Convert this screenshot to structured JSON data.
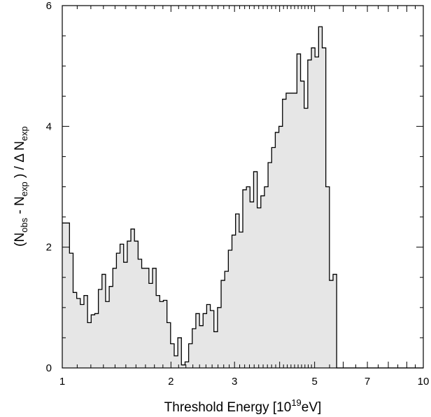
{
  "chart_data": {
    "type": "area",
    "subtype": "step histogram",
    "xscale": "log",
    "xlim": [
      1,
      10
    ],
    "ylim": [
      0,
      6
    ],
    "grid": false,
    "legend": "none",
    "fill_color": "#e6e6e6",
    "line_color": "#000000",
    "xlabel": {
      "main": "Threshold Energy [10",
      "sup": "19",
      "tail": "eV]"
    },
    "ylabel": {
      "p1": "(N",
      "s1": "obs",
      "p2": " - N",
      "s2": "exp",
      "p3": " ) / Δ  N",
      "s3": "exp"
    },
    "x_ticks_major": [
      {
        "value": 1,
        "label": "1"
      },
      {
        "value": 2,
        "label": "2"
      },
      {
        "value": 3,
        "label": "3"
      },
      {
        "value": 5,
        "label": "5"
      },
      {
        "value": 7,
        "label": "7"
      },
      {
        "value": 10,
        "label": "10"
      }
    ],
    "y_ticks_major": [
      {
        "value": 0,
        "label": "0"
      },
      {
        "value": 2,
        "label": "2"
      },
      {
        "value": 4,
        "label": "4"
      },
      {
        "value": 6,
        "label": "6"
      }
    ],
    "bin_start": 1.0,
    "bin_width_log10": 0.01,
    "values": [
      2.4,
      2.4,
      1.9,
      1.25,
      1.15,
      1.05,
      1.2,
      0.75,
      0.88,
      0.9,
      1.3,
      1.55,
      1.1,
      1.35,
      1.65,
      1.9,
      2.05,
      1.75,
      2.1,
      2.3,
      2.1,
      1.8,
      1.65,
      1.65,
      1.4,
      1.65,
      1.2,
      1.1,
      1.12,
      0.75,
      0.4,
      0.2,
      0.5,
      0.05,
      0.1,
      0.4,
      0.65,
      0.9,
      0.7,
      0.9,
      1.05,
      0.95,
      0.6,
      1.0,
      1.45,
      1.6,
      1.95,
      2.2,
      2.55,
      2.25,
      2.95,
      3.0,
      2.75,
      3.25,
      2.65,
      2.85,
      3.0,
      3.4,
      3.65,
      3.9,
      4.0,
      4.45,
      4.55,
      4.55,
      4.55,
      5.2,
      4.75,
      4.3,
      5.1,
      5.3,
      5.15,
      5.65,
      5.3,
      3.0,
      1.45,
      1.55
    ]
  }
}
